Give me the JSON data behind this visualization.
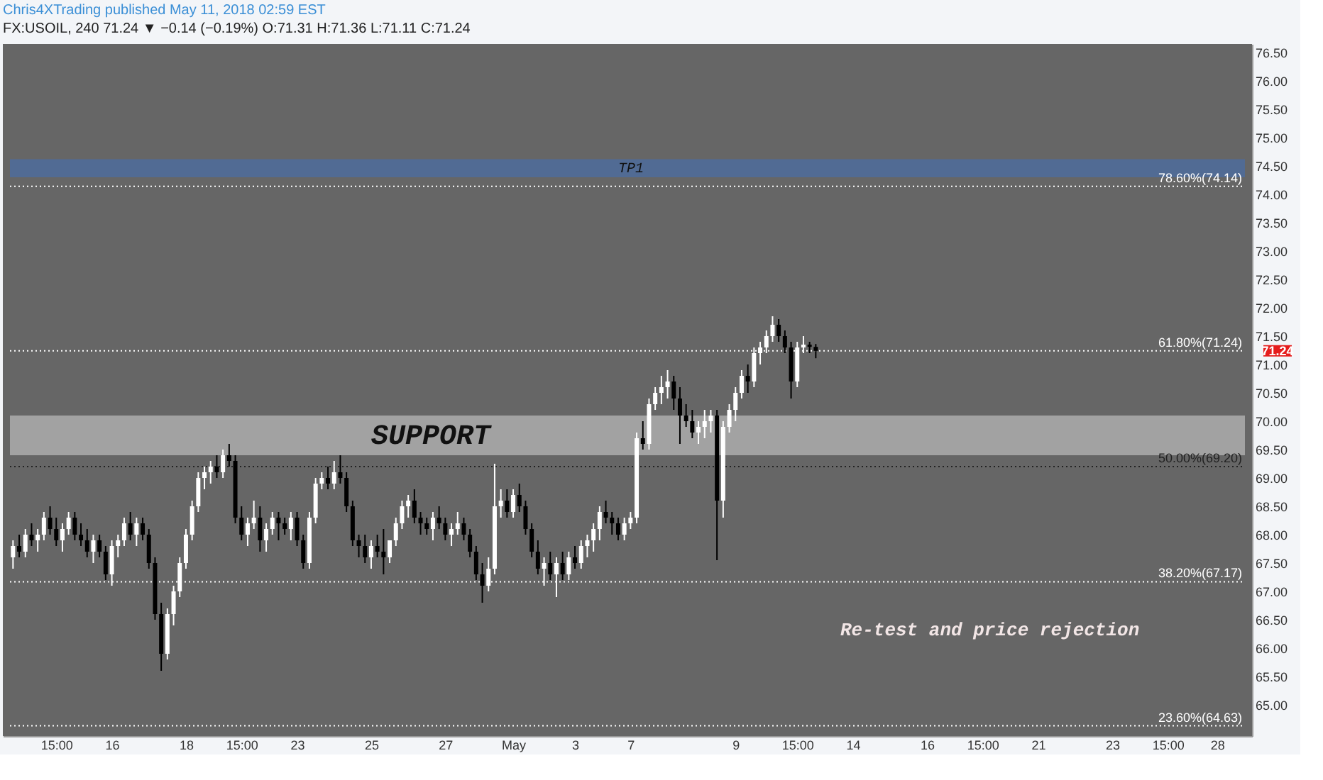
{
  "chart_data": {
    "type": "candlestick",
    "title": "Chris4XTrading published May 11, 2018 02:59 EST",
    "subtitle": "FX:USOIL, 240  71.24 ▼ −0.14 (−0.19%) O:71.31 H:71.36 L:71.11 C:71.24",
    "categories": [
      null,
      null,
      null,
      null,
      null,
      null,
      null,
      "15:00",
      null,
      null,
      null,
      null,
      null,
      null,
      null,
      null,
      "16",
      null,
      null,
      null,
      null,
      null,
      null,
      null,
      null,
      null,
      null,
      null,
      "18",
      null,
      null,
      null,
      null,
      null,
      null,
      null,
      null,
      "15:00",
      null,
      null,
      null,
      null,
      null,
      null,
      null,
      null,
      "23",
      null,
      null,
      null,
      null,
      null,
      null,
      null,
      null,
      null,
      null,
      null,
      "25",
      null,
      null,
      null,
      null,
      null,
      null,
      null,
      null,
      null,
      null,
      null,
      "27",
      null,
      null,
      null,
      null,
      null,
      null,
      null,
      null,
      null,
      null,
      "May",
      null,
      null,
      null,
      null,
      null,
      null,
      null,
      null,
      null,
      "3",
      null,
      null,
      null,
      null,
      null,
      null,
      null,
      null,
      "7",
      null,
      null,
      null,
      null,
      null,
      null,
      null,
      null,
      null,
      null,
      null,
      null,
      null,
      null,
      null,
      null,
      "9",
      null,
      null,
      null,
      null,
      null,
      null,
      null,
      null,
      null,
      "15:00",
      null,
      null,
      null,
      null,
      null,
      null,
      null,
      null,
      "14",
      null,
      null,
      null,
      null,
      null,
      null,
      null,
      null,
      null,
      null,
      null,
      "16",
      null,
      null,
      null,
      null,
      null,
      null,
      null,
      null,
      "15:00",
      null,
      null,
      null,
      null,
      null,
      null,
      null,
      null,
      "21",
      null,
      null,
      null,
      null,
      null,
      null,
      null,
      null,
      null,
      null,
      null,
      "23",
      null,
      null,
      null,
      null,
      null,
      null,
      null,
      null,
      "15:00",
      null,
      null,
      null,
      null,
      null,
      null,
      null,
      "28",
      null,
      null,
      null,
      null
    ],
    "ohlc": [
      [
        67.6,
        67.9,
        67.4,
        67.8
      ],
      [
        67.8,
        68.0,
        67.6,
        67.7
      ],
      [
        67.7,
        68.1,
        67.6,
        68.0
      ],
      [
        68.0,
        68.2,
        67.8,
        67.9
      ],
      [
        67.9,
        68.1,
        67.7,
        68.0
      ],
      [
        68.0,
        68.4,
        67.9,
        68.3
      ],
      [
        68.3,
        68.5,
        68.0,
        68.1
      ],
      [
        68.1,
        68.3,
        67.8,
        67.9
      ],
      [
        67.9,
        68.2,
        67.7,
        68.1
      ],
      [
        68.1,
        68.4,
        68.0,
        68.3
      ],
      [
        68.3,
        68.4,
        67.9,
        68.0
      ],
      [
        68.0,
        68.2,
        67.8,
        67.9
      ],
      [
        67.9,
        68.1,
        67.6,
        67.7
      ],
      [
        67.7,
        68.0,
        67.5,
        67.9
      ],
      [
        67.9,
        68.0,
        67.6,
        67.7
      ],
      [
        67.7,
        67.8,
        67.2,
        67.3
      ],
      [
        67.3,
        67.9,
        67.1,
        67.8
      ],
      [
        67.8,
        68.0,
        67.6,
        67.9
      ],
      [
        67.9,
        68.3,
        67.8,
        68.2
      ],
      [
        68.2,
        68.4,
        67.9,
        68.0
      ],
      [
        68.0,
        68.3,
        67.8,
        68.2
      ],
      [
        68.2,
        68.3,
        67.9,
        68.0
      ],
      [
        68.0,
        68.1,
        67.4,
        67.5
      ],
      [
        67.5,
        67.6,
        66.5,
        66.6
      ],
      [
        66.6,
        66.8,
        65.6,
        65.9
      ],
      [
        65.9,
        66.7,
        65.8,
        66.6
      ],
      [
        66.6,
        67.1,
        66.4,
        67.0
      ],
      [
        67.0,
        67.6,
        66.9,
        67.5
      ],
      [
        67.5,
        68.1,
        67.4,
        68.0
      ],
      [
        68.0,
        68.6,
        67.9,
        68.5
      ],
      [
        68.5,
        69.1,
        68.4,
        69.0
      ],
      [
        69.0,
        69.2,
        68.8,
        69.1
      ],
      [
        69.1,
        69.3,
        68.9,
        69.2
      ],
      [
        69.2,
        69.4,
        69.0,
        69.1
      ],
      [
        69.1,
        69.5,
        69.0,
        69.4
      ],
      [
        69.4,
        69.6,
        69.2,
        69.3
      ],
      [
        69.3,
        69.4,
        68.2,
        68.3
      ],
      [
        68.3,
        68.5,
        67.9,
        68.0
      ],
      [
        68.0,
        68.3,
        67.8,
        68.2
      ],
      [
        68.2,
        68.6,
        68.1,
        68.3
      ],
      [
        68.3,
        68.5,
        67.7,
        67.9
      ],
      [
        67.9,
        68.2,
        67.7,
        68.1
      ],
      [
        68.1,
        68.4,
        68.0,
        68.3
      ],
      [
        68.3,
        68.4,
        67.9,
        68.2
      ],
      [
        68.2,
        68.3,
        68.0,
        68.1
      ],
      [
        68.1,
        68.4,
        67.9,
        68.3
      ],
      [
        68.3,
        68.4,
        67.8,
        67.9
      ],
      [
        67.9,
        68.0,
        67.4,
        67.5
      ],
      [
        67.5,
        68.4,
        67.4,
        68.3
      ],
      [
        68.3,
        69.0,
        68.2,
        68.9
      ],
      [
        68.9,
        69.1,
        68.8,
        69.0
      ],
      [
        69.0,
        69.2,
        68.8,
        68.9
      ],
      [
        68.9,
        69.3,
        68.8,
        69.1
      ],
      [
        69.1,
        69.4,
        68.9,
        69.0
      ],
      [
        69.0,
        69.1,
        68.4,
        68.5
      ],
      [
        68.5,
        68.6,
        67.8,
        67.9
      ],
      [
        67.9,
        68.0,
        67.6,
        67.8
      ],
      [
        67.8,
        68.0,
        67.5,
        67.6
      ],
      [
        67.6,
        67.9,
        67.4,
        67.8
      ],
      [
        67.8,
        68.0,
        67.6,
        67.7
      ],
      [
        67.7,
        68.1,
        67.3,
        67.6
      ],
      [
        67.6,
        67.9,
        67.5,
        67.9
      ],
      [
        67.9,
        68.3,
        67.8,
        68.2
      ],
      [
        68.2,
        68.6,
        68.1,
        68.5
      ],
      [
        68.5,
        68.7,
        68.3,
        68.6
      ],
      [
        68.6,
        68.8,
        68.2,
        68.3
      ],
      [
        68.3,
        68.4,
        68.0,
        68.2
      ],
      [
        68.2,
        68.3,
        68.0,
        68.1
      ],
      [
        68.1,
        68.4,
        67.9,
        68.3
      ],
      [
        68.3,
        68.5,
        68.1,
        68.2
      ],
      [
        68.2,
        68.3,
        67.9,
        68.0
      ],
      [
        68.0,
        68.2,
        67.8,
        68.1
      ],
      [
        68.1,
        68.4,
        68.0,
        68.2
      ],
      [
        68.2,
        68.3,
        67.9,
        68.0
      ],
      [
        68.0,
        68.1,
        67.6,
        67.7
      ],
      [
        67.7,
        67.8,
        67.2,
        67.3
      ],
      [
        67.3,
        67.5,
        66.8,
        67.1
      ],
      [
        67.1,
        67.6,
        67.0,
        67.4
      ],
      [
        67.4,
        69.25,
        67.3,
        68.5
      ],
      [
        68.5,
        68.8,
        68.3,
        68.6
      ],
      [
        68.6,
        68.8,
        68.3,
        68.4
      ],
      [
        68.4,
        68.8,
        68.3,
        68.7
      ],
      [
        68.7,
        68.9,
        68.4,
        68.5
      ],
      [
        68.5,
        68.6,
        68.0,
        68.1
      ],
      [
        68.1,
        68.2,
        67.6,
        67.7
      ],
      [
        67.7,
        67.9,
        67.3,
        67.4
      ],
      [
        67.4,
        67.6,
        67.1,
        67.5
      ],
      [
        67.5,
        67.7,
        67.2,
        67.3
      ],
      [
        67.3,
        67.6,
        66.9,
        67.5
      ],
      [
        67.5,
        67.7,
        67.2,
        67.3
      ],
      [
        67.3,
        67.7,
        67.2,
        67.6
      ],
      [
        67.6,
        67.8,
        67.4,
        67.5
      ],
      [
        67.5,
        67.9,
        67.4,
        67.8
      ],
      [
        67.8,
        68.0,
        67.6,
        67.9
      ],
      [
        67.9,
        68.2,
        67.7,
        68.1
      ],
      [
        68.1,
        68.5,
        67.9,
        68.4
      ],
      [
        68.4,
        68.6,
        68.2,
        68.3
      ],
      [
        68.3,
        68.4,
        68.0,
        68.2
      ],
      [
        68.2,
        68.3,
        67.9,
        68.0
      ],
      [
        68.0,
        68.3,
        67.9,
        68.2
      ],
      [
        68.2,
        68.4,
        68.1,
        68.3
      ],
      [
        68.3,
        69.8,
        68.2,
        69.7
      ],
      [
        69.7,
        70.0,
        69.5,
        69.6
      ],
      [
        69.6,
        70.4,
        69.5,
        70.3
      ],
      [
        70.3,
        70.6,
        70.2,
        70.5
      ],
      [
        70.5,
        70.8,
        70.3,
        70.6
      ],
      [
        70.6,
        70.9,
        70.4,
        70.7
      ],
      [
        70.7,
        70.8,
        70.2,
        70.4
      ],
      [
        70.4,
        70.6,
        69.6,
        70.1
      ],
      [
        70.1,
        70.3,
        69.9,
        70.0
      ],
      [
        70.0,
        70.2,
        69.7,
        69.8
      ],
      [
        69.8,
        70.0,
        69.6,
        69.9
      ],
      [
        69.9,
        70.2,
        69.7,
        70.0
      ],
      [
        70.0,
        70.2,
        69.8,
        70.1
      ],
      [
        70.1,
        70.2,
        67.55,
        68.6
      ],
      [
        68.6,
        70.0,
        68.3,
        69.9
      ],
      [
        69.9,
        70.3,
        69.8,
        70.2
      ],
      [
        70.2,
        70.6,
        70.0,
        70.5
      ],
      [
        70.5,
        70.9,
        70.4,
        70.8
      ],
      [
        70.8,
        71.0,
        70.5,
        70.7
      ],
      [
        70.7,
        71.3,
        70.6,
        71.2
      ],
      [
        71.2,
        71.4,
        71.0,
        71.3
      ],
      [
        71.3,
        71.6,
        71.2,
        71.5
      ],
      [
        71.5,
        71.85,
        71.4,
        71.7
      ],
      [
        71.7,
        71.8,
        71.4,
        71.5
      ],
      [
        71.5,
        71.6,
        71.2,
        71.3
      ],
      [
        71.3,
        71.4,
        70.4,
        70.7
      ],
      [
        70.7,
        71.4,
        70.6,
        71.3
      ],
      [
        71.3,
        71.5,
        71.2,
        71.35
      ],
      [
        71.35,
        71.4,
        71.2,
        71.31
      ],
      [
        71.31,
        71.36,
        71.11,
        71.24
      ],
      null,
      null,
      null,
      null,
      null,
      null,
      null,
      null,
      null,
      null,
      null,
      null,
      null,
      null,
      null,
      null,
      null,
      null,
      null,
      null,
      null,
      null,
      null,
      null,
      null,
      null,
      null,
      null,
      null,
      null,
      null,
      null,
      null,
      null,
      null,
      null,
      null,
      null,
      null,
      null,
      null,
      null,
      null,
      null,
      null,
      null,
      null,
      null,
      null,
      null,
      null,
      null,
      null,
      null,
      null,
      null,
      null,
      null,
      null,
      null,
      null,
      null,
      null,
      null,
      null,
      null,
      null,
      null,
      null
    ],
    "ylim": [
      64.45,
      76.65
    ],
    "yticks": [
      {
        "value": 65,
        "label": "65.00"
      },
      {
        "value": 65.5,
        "label": "65.50"
      },
      {
        "value": 66,
        "label": "66.00"
      },
      {
        "value": 66.5,
        "label": "66.50"
      },
      {
        "value": 67,
        "label": "67.00"
      },
      {
        "value": 67.5,
        "label": "67.50"
      },
      {
        "value": 68,
        "label": "68.00"
      },
      {
        "value": 68.5,
        "label": "68.50"
      },
      {
        "value": 69,
        "label": "69.00"
      },
      {
        "value": 69.5,
        "label": "69.50"
      },
      {
        "value": 70,
        "label": "70.00"
      },
      {
        "value": 70.5,
        "label": "70.50"
      },
      {
        "value": 71,
        "label": "71.00"
      },
      {
        "value": 71.5,
        "label": "71.50"
      },
      {
        "value": 72,
        "label": "72.00"
      },
      {
        "value": 72.5,
        "label": "72.50"
      },
      {
        "value": 73,
        "label": "73.00"
      },
      {
        "value": 73.5,
        "label": "73.50"
      },
      {
        "value": 74,
        "label": "74.00"
      },
      {
        "value": 74.5,
        "label": "74.50"
      },
      {
        "value": 75,
        "label": "75.00"
      },
      {
        "value": 75.5,
        "label": "75.50"
      },
      {
        "value": 76,
        "label": "76.00"
      },
      {
        "value": 76.5,
        "label": "76.50"
      }
    ],
    "ref_lines": [
      {
        "axis": "y",
        "value": 74.14,
        "label": "78.60%(74.14)",
        "color": "#ffffff",
        "line_style": "dotted"
      },
      {
        "axis": "y",
        "value": 71.24,
        "label": "61.80%(71.24)",
        "color": "#ffffff",
        "line_style": "dotted"
      },
      {
        "axis": "y",
        "value": 69.2,
        "label": "50.00%(69.20)",
        "color": "#222222",
        "line_style": "dotted"
      },
      {
        "axis": "y",
        "value": 67.17,
        "label": "38.20%(67.17)",
        "color": "#ffffff",
        "line_style": "dotted"
      },
      {
        "axis": "y",
        "value": 64.63,
        "label": "23.60%(64.63)",
        "color": "#ffffff",
        "line_style": "dotted"
      }
    ],
    "bands": [
      {
        "axis": "y",
        "from": 69.4,
        "to": 70.1,
        "label": "SUPPORT",
        "color": "#a8a8a8"
      },
      {
        "axis": "y",
        "from": 74.3,
        "to": 74.62,
        "label": "TP1",
        "color": "#4f6b99"
      }
    ],
    "annotations": [
      "71.24",
      "Re-test and price rejection"
    ]
  }
}
